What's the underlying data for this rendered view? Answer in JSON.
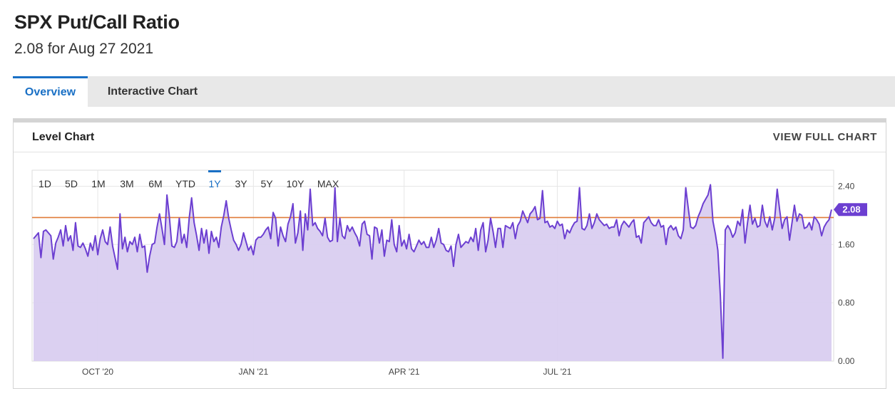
{
  "header": {
    "title": "SPX Put/Call Ratio",
    "subtitle": "2.08 for Aug 27 2021"
  },
  "tabs": [
    {
      "label": "Overview",
      "active": true
    },
    {
      "label": "Interactive Chart",
      "active": false
    }
  ],
  "panel": {
    "title": "Level Chart",
    "view_full_label": "VIEW FULL CHART"
  },
  "range_buttons": [
    {
      "label": "1D"
    },
    {
      "label": "5D"
    },
    {
      "label": "1M"
    },
    {
      "label": "3M"
    },
    {
      "label": "6M"
    },
    {
      "label": "YTD"
    },
    {
      "label": "1Y",
      "active": true
    },
    {
      "label": "3Y"
    },
    {
      "label": "5Y"
    },
    {
      "label": "10Y"
    },
    {
      "label": "MAX"
    }
  ],
  "colors": {
    "line": "#6c3fd1",
    "fill": "#d9cdf0",
    "reference_line": "#e07b39",
    "badge": "#6c3fd1",
    "active_tab": "#1a70c5"
  },
  "chart_data": {
    "type": "area",
    "title": "",
    "xlabel": "",
    "ylabel": "",
    "x_ticks": [
      {
        "label": "OCT '20",
        "index": 26
      },
      {
        "label": "JAN '21",
        "index": 89
      },
      {
        "label": "APR '21",
        "index": 150
      },
      {
        "label": "JUL '21",
        "index": 212
      }
    ],
    "y_ticks": [
      "0.00",
      "0.80",
      "1.60",
      "2.40"
    ],
    "y_tick_values": [
      0,
      0.8,
      1.6,
      2.4
    ],
    "ylim": [
      0,
      2.6
    ],
    "grid": true,
    "reference_value": 1.97,
    "last_value_label": "2.08",
    "series": [
      {
        "values": [
          1.68,
          1.72,
          1.76,
          1.42,
          1.78,
          1.8,
          1.76,
          1.72,
          1.4,
          1.62,
          1.7,
          1.8,
          1.58,
          1.86,
          1.65,
          1.72,
          1.52,
          1.9,
          1.58,
          1.56,
          1.62,
          1.54,
          1.44,
          1.62,
          1.52,
          1.72,
          1.46,
          1.68,
          1.8,
          1.64,
          1.6,
          1.84,
          1.58,
          1.42,
          1.26,
          2.02,
          1.54,
          1.7,
          1.5,
          1.64,
          1.6,
          1.7,
          1.5,
          1.74,
          1.56,
          1.58,
          1.22,
          1.44,
          1.6,
          1.62,
          1.84,
          2.02,
          1.82,
          1.6,
          2.28,
          1.98,
          1.58,
          1.56,
          1.64,
          1.96,
          1.62,
          1.74,
          1.56,
          1.96,
          2.24,
          1.9,
          1.72,
          1.52,
          1.82,
          1.62,
          1.8,
          1.48,
          1.78,
          1.64,
          1.7,
          1.56,
          1.84,
          2.0,
          2.2,
          1.96,
          1.8,
          1.66,
          1.6,
          1.52,
          1.6,
          1.76,
          1.64,
          1.52,
          1.58,
          1.46,
          1.66,
          1.7,
          1.7,
          1.74,
          1.8,
          1.84,
          1.68,
          2.04,
          1.96,
          1.58,
          1.84,
          1.72,
          1.64,
          1.88,
          1.98,
          2.16,
          1.62,
          1.76,
          2.06,
          1.52,
          2.02,
          1.8,
          2.36,
          1.86,
          1.9,
          1.82,
          1.78,
          1.72,
          1.96,
          1.7,
          1.64,
          1.66,
          2.38,
          1.64,
          1.96,
          1.72,
          1.68,
          1.86,
          1.78,
          1.84,
          1.76,
          1.7,
          1.58,
          1.88,
          1.92,
          1.74,
          1.72,
          1.4,
          1.84,
          1.82,
          1.62,
          1.8,
          1.44,
          1.66,
          1.64,
          1.94,
          1.6,
          1.5,
          1.86,
          1.58,
          1.66,
          1.54,
          1.74,
          1.54,
          1.5,
          1.58,
          1.66,
          1.6,
          1.64,
          1.56,
          1.56,
          1.7,
          1.56,
          1.66,
          1.82,
          1.62,
          1.6,
          1.52,
          1.5,
          1.58,
          1.3,
          1.6,
          1.74,
          1.56,
          1.6,
          1.64,
          1.62,
          1.7,
          1.64,
          1.82,
          1.52,
          1.8,
          1.9,
          1.5,
          1.66,
          1.96,
          1.78,
          1.56,
          1.82,
          1.82,
          1.56,
          1.86,
          1.84,
          1.82,
          1.9,
          1.68,
          1.86,
          1.92,
          2.06,
          1.98,
          1.9,
          2.02,
          2.06,
          2.12,
          1.94,
          1.96,
          2.34,
          1.9,
          1.92,
          1.84,
          1.86,
          1.82,
          1.92,
          1.86,
          1.88,
          1.68,
          1.8,
          1.76,
          1.84,
          1.9,
          1.92,
          2.38,
          1.82,
          1.8,
          1.86,
          2.02,
          1.82,
          1.9,
          2.02,
          1.94,
          1.9,
          1.86,
          1.88,
          1.82,
          1.84,
          1.84,
          1.94,
          1.72,
          1.86,
          1.92,
          1.88,
          1.84,
          1.9,
          1.94,
          1.7,
          1.72,
          1.62,
          1.9,
          1.94,
          1.98,
          1.9,
          1.86,
          1.86,
          1.94,
          1.84,
          1.86,
          1.6,
          1.82,
          1.86,
          1.8,
          1.84,
          1.72,
          1.68,
          1.8,
          2.38,
          2.1,
          1.84,
          1.82,
          1.86,
          1.98,
          2.06,
          2.16,
          2.22,
          2.28,
          2.42,
          1.92,
          1.74,
          1.52,
          0.9,
          0.04,
          1.8,
          1.86,
          1.8,
          1.7,
          1.76,
          1.92,
          1.86,
          2.08,
          1.62,
          1.9,
          2.14,
          1.88,
          1.96,
          1.84,
          1.86,
          2.14,
          1.92,
          1.84,
          1.98,
          1.8,
          1.96,
          2.36,
          2.08,
          1.82,
          1.94,
          1.98,
          1.66,
          1.9,
          2.14,
          1.92,
          2.02,
          2.0,
          1.82,
          1.84,
          1.9,
          1.8,
          1.98,
          1.94,
          1.88,
          1.72,
          1.84,
          1.9,
          1.94,
          2.08
        ]
      }
    ]
  }
}
